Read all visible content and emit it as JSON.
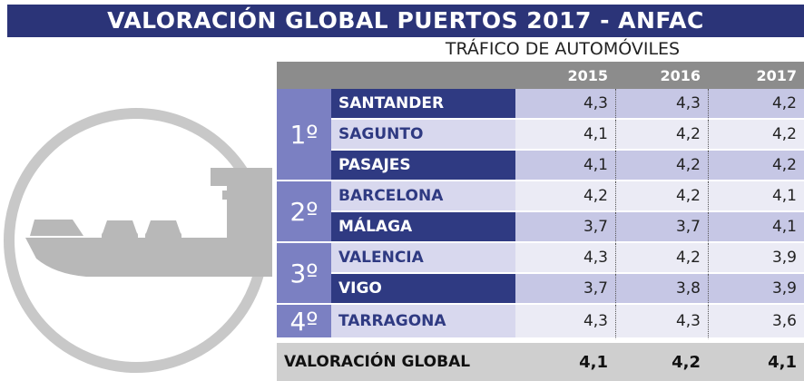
{
  "header": {
    "title": "VALORACIÓN GLOBAL PUERTOS 2017 - ANFAC",
    "subtitle": "TRÁFICO DE AUTOMÓVILES"
  },
  "table": {
    "columns": [
      "2015",
      "2016",
      "2017"
    ],
    "groups": [
      {
        "rank": "1º",
        "rows": [
          {
            "name": "SANTANDER",
            "values": [
              "4,3",
              "4,3",
              "4,2"
            ]
          },
          {
            "name": "SAGUNTO",
            "values": [
              "4,1",
              "4,2",
              "4,2"
            ]
          },
          {
            "name": "PASAJES",
            "values": [
              "4,1",
              "4,2",
              "4,2"
            ]
          }
        ]
      },
      {
        "rank": "2º",
        "rows": [
          {
            "name": "BARCELONA",
            "values": [
              "4,2",
              "4,2",
              "4,1"
            ]
          },
          {
            "name": "MÁLAGA",
            "values": [
              "3,7",
              "3,7",
              "4,1"
            ]
          }
        ]
      },
      {
        "rank": "3º",
        "rows": [
          {
            "name": "VALENCIA",
            "values": [
              "4,3",
              "4,2",
              "3,9"
            ]
          },
          {
            "name": "VIGO",
            "values": [
              "3,7",
              "3,8",
              "3,9"
            ]
          }
        ]
      },
      {
        "rank": "4º",
        "rows": [
          {
            "name": "TARRAGONA",
            "values": [
              "4,3",
              "4,3",
              "3,6"
            ]
          }
        ]
      }
    ],
    "footer": {
      "label": "VALORACIÓN GLOBAL",
      "values": [
        "4,1",
        "4,2",
        "4,1"
      ]
    }
  }
}
